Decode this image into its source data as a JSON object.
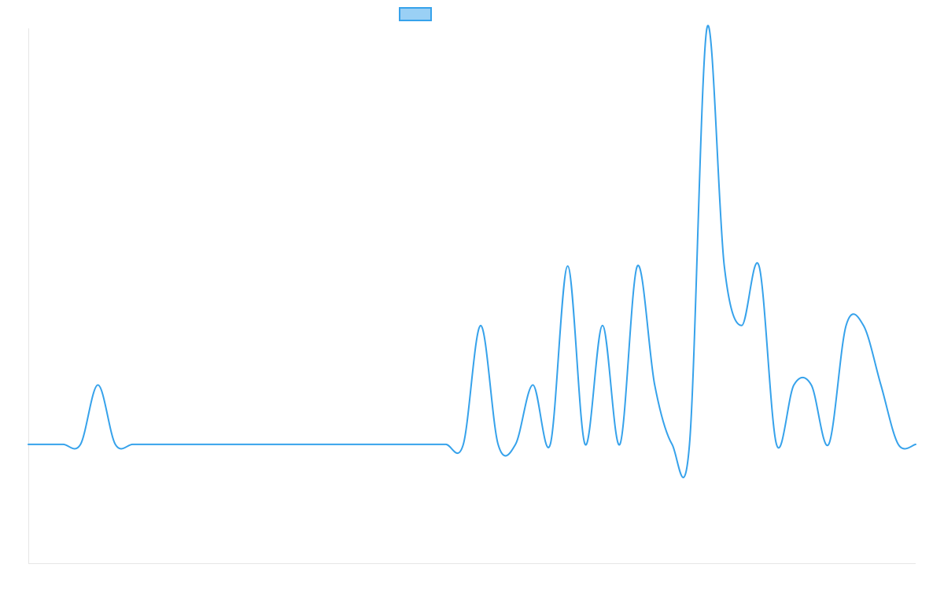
{
  "chart_data": {
    "type": "line",
    "title": "",
    "xlabel": "",
    "ylabel": "",
    "grid": false,
    "legend": "top-center",
    "x": [
      0,
      1,
      2,
      3,
      4,
      5,
      6,
      7,
      8,
      9,
      10,
      11,
      12,
      13,
      14,
      15,
      16,
      17,
      18,
      19,
      20,
      21,
      22,
      23,
      24,
      25,
      26,
      27,
      28,
      29,
      30,
      31,
      32,
      33,
      34,
      35,
      36,
      37,
      38,
      39,
      40,
      41,
      42,
      43,
      44,
      45,
      46,
      47,
      48,
      49,
      50,
      51
    ],
    "series": [
      {
        "name": "",
        "color": "#36a2eb",
        "fill": "#9ad0f5",
        "values": [
          0,
          0,
          0,
          0,
          1,
          0,
          0,
          0,
          0,
          0,
          0,
          0,
          0,
          0,
          0,
          0,
          0,
          0,
          0,
          0,
          0,
          0,
          0,
          0,
          0,
          0,
          2,
          0,
          0,
          1,
          0,
          3,
          0,
          2,
          0,
          3,
          1,
          0,
          0,
          7,
          3,
          2,
          3,
          0,
          1,
          1,
          0,
          2,
          2,
          1,
          0,
          0
        ]
      }
    ],
    "ylim": [
      -2,
      7
    ],
    "xlim": [
      0,
      51
    ]
  }
}
